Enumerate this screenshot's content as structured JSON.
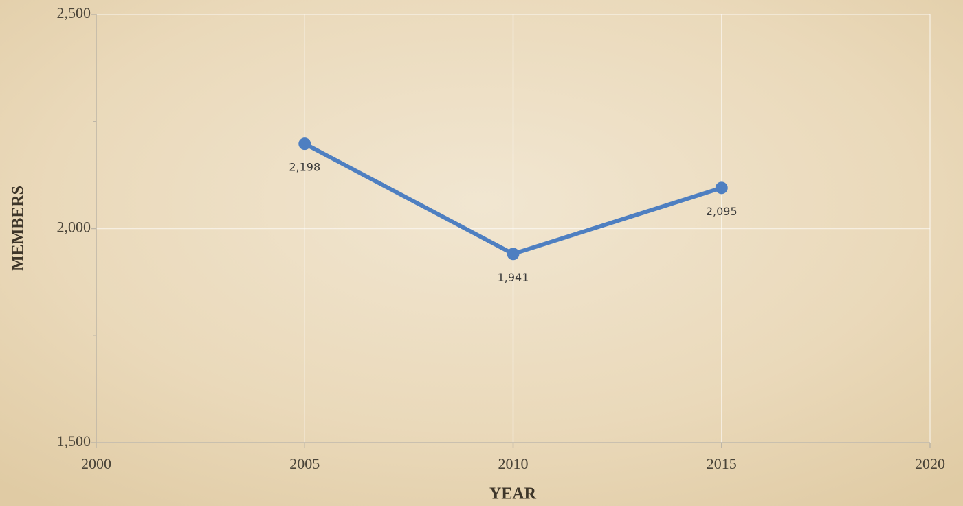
{
  "chart_data": {
    "type": "line",
    "x": [
      2005,
      2010,
      2015
    ],
    "series": [
      {
        "name": "MEMBERS",
        "color": "#4e7fc1",
        "values": [
          2198,
          1941,
          2095
        ],
        "value_labels": [
          "2,198",
          "1,941",
          "2,095"
        ]
      }
    ],
    "xlabel": "YEAR",
    "ylabel": "MEMBERS",
    "xlim": [
      2000,
      2020
    ],
    "xticks": [
      2000,
      2005,
      2010,
      2015,
      2020
    ],
    "ylim": [
      1500,
      2500
    ],
    "yticks": [
      {
        "value": 1500,
        "label": "1,500"
      },
      {
        "value": 2000,
        "label": "2,000"
      },
      {
        "value": 2500,
        "label": "2,500"
      }
    ],
    "grid": true
  }
}
